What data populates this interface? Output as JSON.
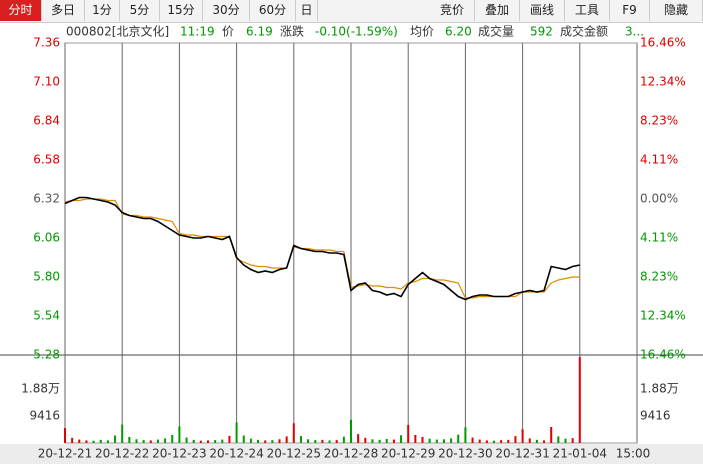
{
  "header": {
    "tabs": [
      "分时",
      "多日",
      "1分",
      "5分",
      "15分",
      "30分",
      "60分",
      "日"
    ],
    "buttons": [
      "竞价",
      "叠加",
      "画线",
      "工具",
      "F9",
      "隐藏"
    ]
  },
  "info": {
    "items": [
      "000802[北京文化]",
      "11:19",
      "价",
      "6.19",
      "涨跌",
      "-0.10(-1.59%)",
      "均价",
      "6.20",
      "成交量",
      "592",
      "成交金额",
      "3..."
    ]
  },
  "chart_data": {
    "type": "line",
    "x": [
      0,
      0.125,
      0.25,
      0.375,
      0.5,
      0.625,
      0.75,
      0.875,
      1,
      1.125,
      1.25,
      1.375,
      1.5,
      1.625,
      1.75,
      1.875,
      2,
      2.125,
      2.25,
      2.375,
      2.5,
      2.625,
      2.75,
      2.875,
      3,
      3.125,
      3.25,
      3.375,
      3.5,
      3.625,
      3.75,
      3.875,
      4,
      4.125,
      4.25,
      4.375,
      4.5,
      4.625,
      4.75,
      4.875,
      5,
      5.125,
      5.25,
      5.375,
      5.5,
      5.625,
      5.75,
      5.875,
      6,
      6.125,
      6.25,
      6.375,
      6.5,
      6.625,
      6.75,
      6.875,
      7,
      7.125,
      7.25,
      7.375,
      7.5,
      7.625,
      7.75,
      7.875,
      8,
      8.125,
      8.25,
      8.375,
      8.5,
      8.625,
      8.75,
      8.875,
      9
    ],
    "series": [
      {
        "color": "#000000",
        "values": [
          6.29,
          6.31,
          6.33,
          6.33,
          6.32,
          6.31,
          6.3,
          6.28,
          6.23,
          6.21,
          6.2,
          6.19,
          6.19,
          6.17,
          6.14,
          6.11,
          6.08,
          6.07,
          6.06,
          6.06,
          6.07,
          6.06,
          6.05,
          6.07,
          5.93,
          5.88,
          5.85,
          5.83,
          5.84,
          5.83,
          5.85,
          5.86,
          6.01,
          5.99,
          5.98,
          5.97,
          5.97,
          5.96,
          5.96,
          5.95,
          5.71,
          5.75,
          5.76,
          5.71,
          5.7,
          5.68,
          5.69,
          5.67,
          5.75,
          5.79,
          5.83,
          5.79,
          5.77,
          5.75,
          5.71,
          5.67,
          5.65,
          5.67,
          5.68,
          5.68,
          5.67,
          5.67,
          5.67,
          5.69,
          5.7,
          5.71,
          5.7,
          5.71,
          5.87,
          5.86,
          5.85,
          5.87,
          5.88
        ]
      },
      {
        "color": "#e08a00",
        "values": [
          6.3,
          6.31,
          6.31,
          6.32,
          6.32,
          6.32,
          6.31,
          6.31,
          6.22,
          6.21,
          6.21,
          6.2,
          6.2,
          6.19,
          6.18,
          6.17,
          6.09,
          6.08,
          6.08,
          6.07,
          6.07,
          6.07,
          6.07,
          6.07,
          5.92,
          5.9,
          5.88,
          5.87,
          5.87,
          5.86,
          5.86,
          5.86,
          6.0,
          5.99,
          5.99,
          5.98,
          5.98,
          5.98,
          5.97,
          5.97,
          5.73,
          5.74,
          5.75,
          5.74,
          5.74,
          5.73,
          5.73,
          5.72,
          5.76,
          5.77,
          5.79,
          5.79,
          5.78,
          5.78,
          5.77,
          5.76,
          5.66,
          5.66,
          5.67,
          5.67,
          5.67,
          5.67,
          5.67,
          5.67,
          5.7,
          5.7,
          5.7,
          5.7,
          5.76,
          5.78,
          5.79,
          5.8,
          5.8
        ]
      }
    ],
    "volume": {
      "values": [
        5200,
        1800,
        1200,
        900,
        800,
        1100,
        900,
        2600,
        6400,
        2100,
        1300,
        1000,
        900,
        1200,
        1600,
        2800,
        5800,
        1900,
        1100,
        800,
        900,
        1000,
        1200,
        2500,
        7200,
        2600,
        1500,
        1100,
        900,
        1000,
        1300,
        2300,
        6900,
        2400,
        1300,
        1000,
        1100,
        900,
        1000,
        2200,
        8100,
        3100,
        1800,
        1300,
        1100,
        1400,
        1200,
        2700,
        6300,
        2800,
        2100,
        1500,
        1200,
        1300,
        1600,
        2900,
        5500,
        1900,
        1200,
        900,
        800,
        1000,
        1100,
        2400,
        4800,
        1600,
        1100,
        900,
        5600,
        2300,
        1500,
        1700,
        30000
      ],
      "ylim": [
        0,
        30000
      ],
      "yticks": [
        {
          "value": 18800,
          "label": "1.88万"
        },
        9416
      ]
    },
    "up_color": "#e00000",
    "down_color": "#009900",
    "flat_color": "#555555",
    "xlim": [
      0,
      10
    ],
    "xticks": [
      {
        "value": 0,
        "label": "20-12-21"
      },
      {
        "value": 1,
        "label": "20-12-22"
      },
      {
        "value": 2,
        "label": "20-12-23"
      },
      {
        "value": 3,
        "label": "20-12-24"
      },
      {
        "value": 4,
        "label": "20-12-25"
      },
      {
        "value": 5,
        "label": "20-12-28"
      },
      {
        "value": 6,
        "label": "20-12-29"
      },
      {
        "value": 7,
        "label": "20-12-30"
      },
      {
        "value": 8,
        "label": "20-12-31"
      },
      {
        "value": 9,
        "label": "21-01-04"
      },
      {
        "value": 10,
        "label": "15:00"
      }
    ],
    "ylim": [
      5.28,
      7.36
    ],
    "yticks": [
      7.36,
      {
        "value": 7.1,
        "label": "7.10"
      },
      6.84,
      6.58,
      6.32,
      6.06,
      {
        "value": 5.8,
        "label": "5.80"
      },
      5.54,
      5.28
    ],
    "y2lim": [
      -16.46,
      16.46
    ],
    "y2ticks": [
      {
        "value": 16.46,
        "label": "16.46%"
      },
      {
        "value": 12.34,
        "label": "12.34%"
      },
      {
        "value": 8.23,
        "label": "8.23%"
      },
      {
        "value": 4.11,
        "label": "4.11%"
      },
      {
        "value": 0,
        "label": "0.00%"
      },
      {
        "value": -4.11,
        "label": "4.11%"
      },
      {
        "value": -8.23,
        "label": "8.23%"
      },
      {
        "value": -12.34,
        "label": "12.34%"
      },
      {
        "value": -16.46,
        "label": "16.46%"
      }
    ],
    "grid": true
  }
}
